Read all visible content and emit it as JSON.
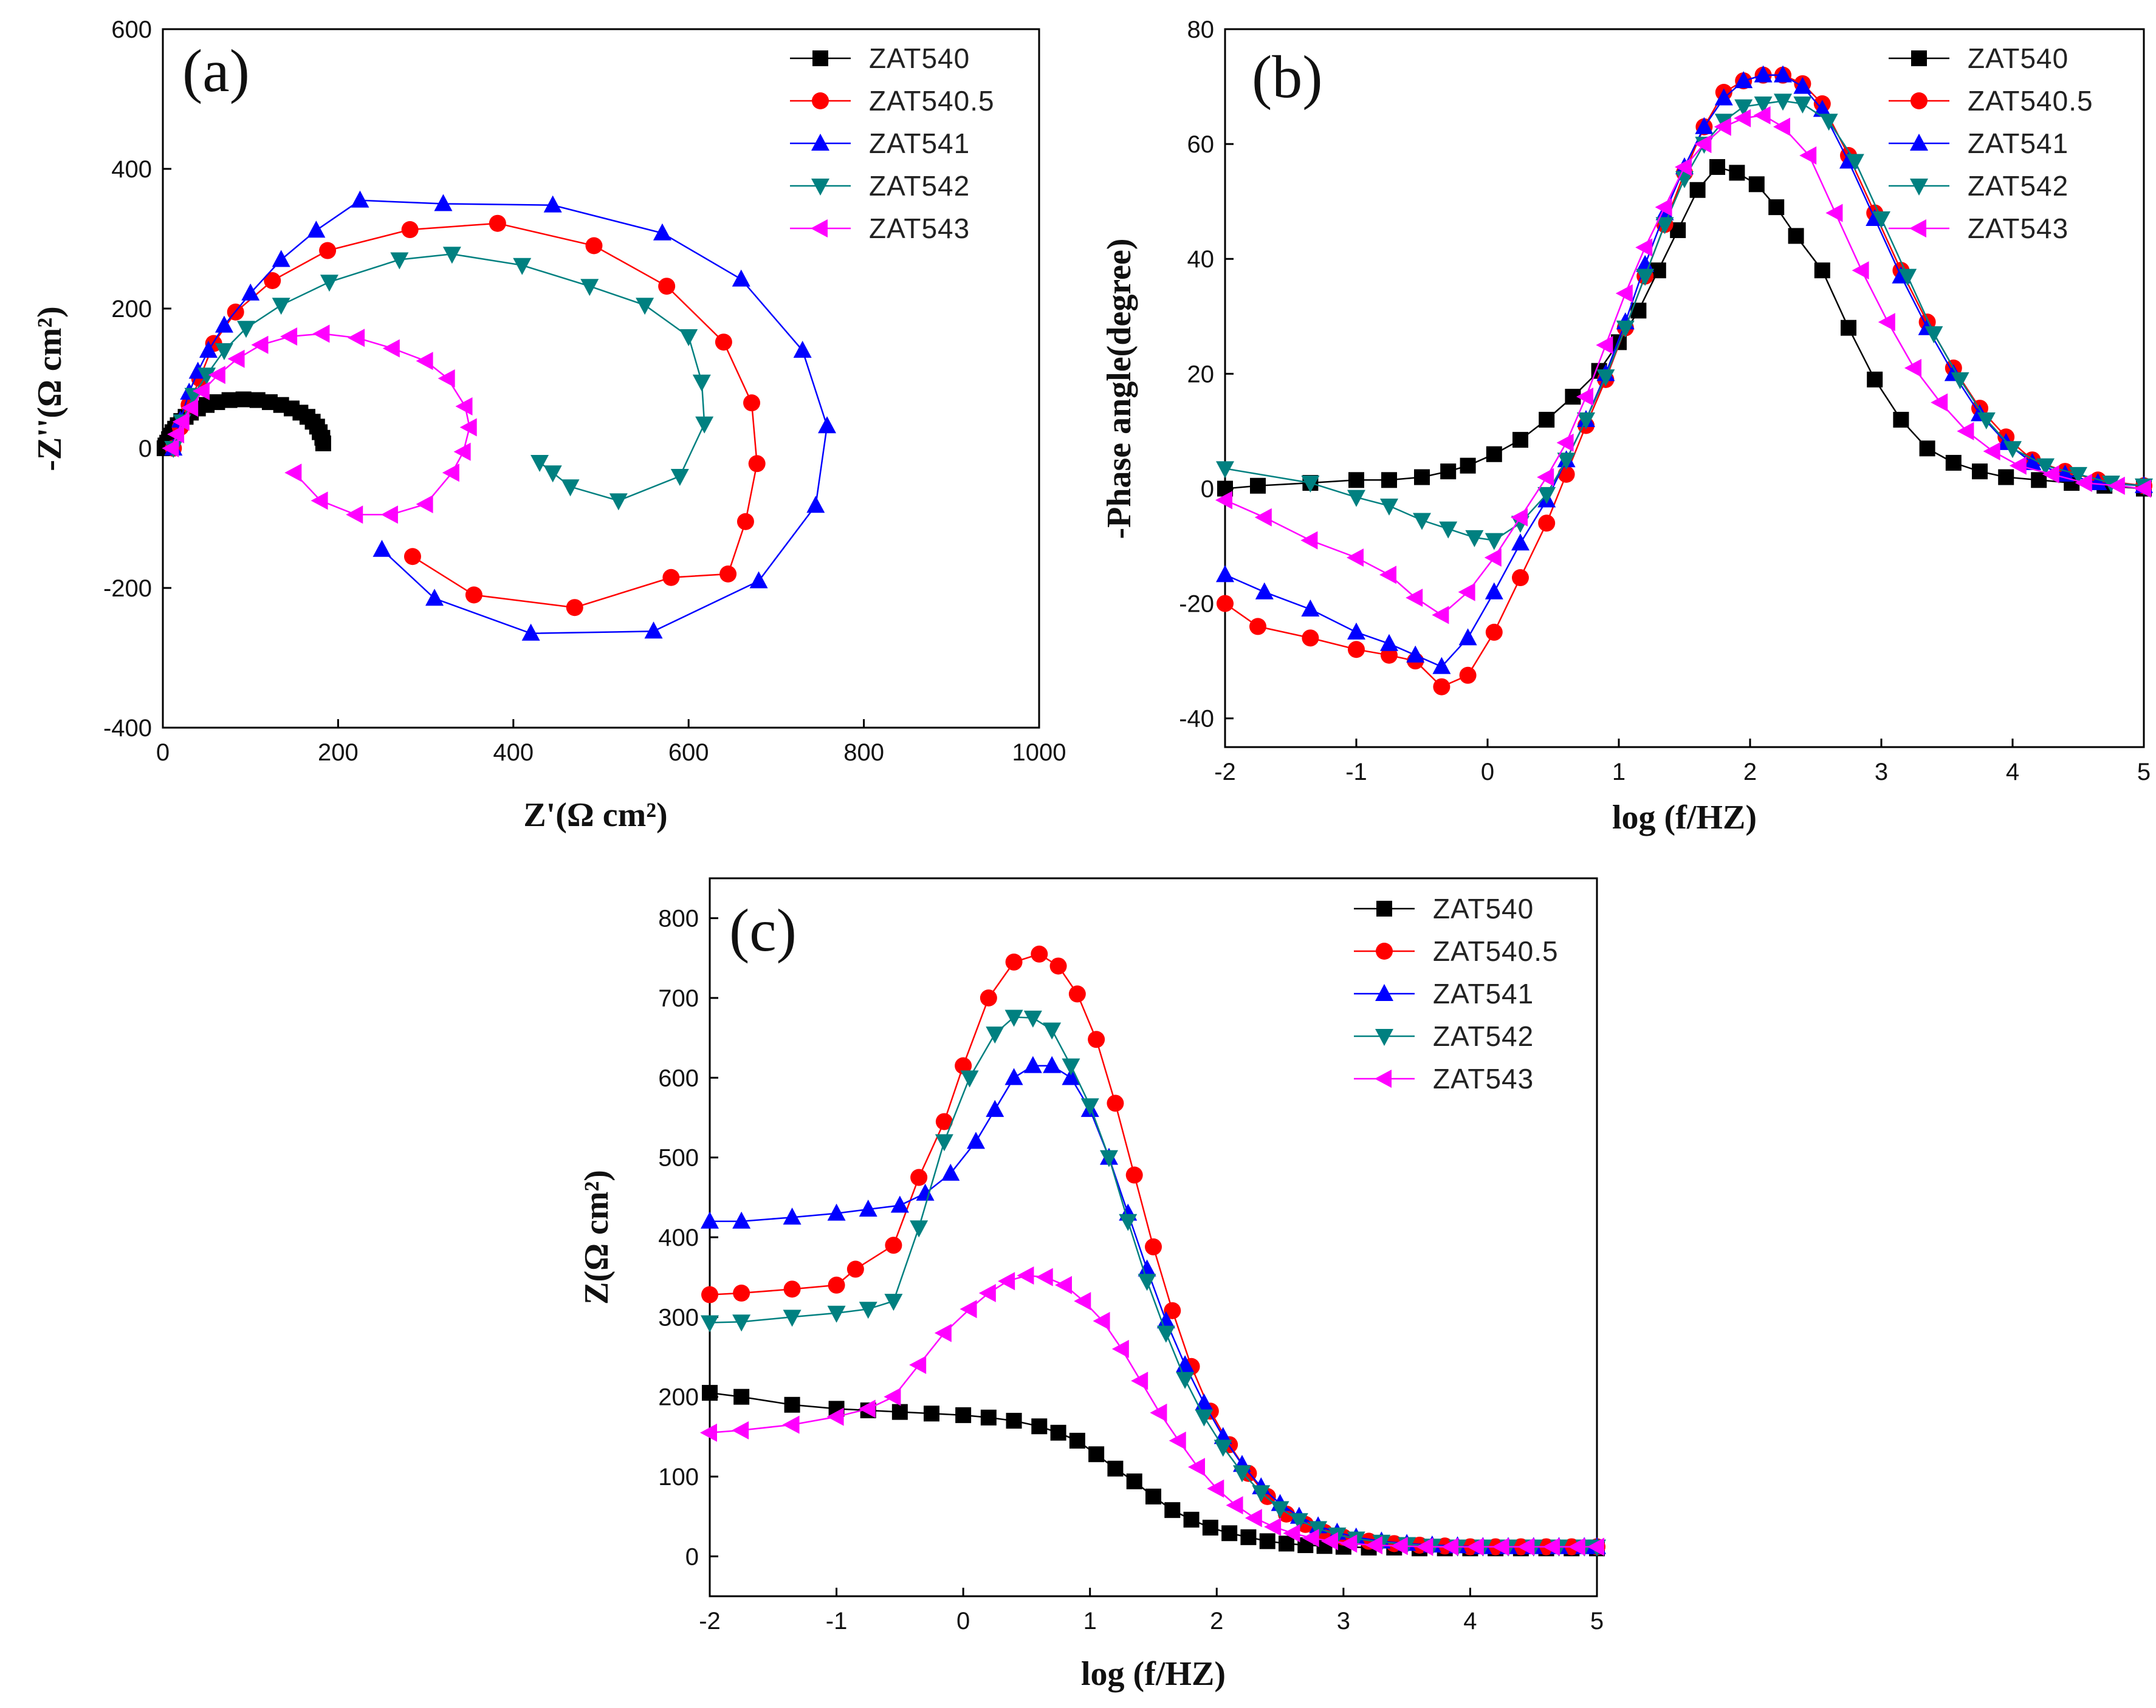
{
  "series_styles": [
    {
      "name": "ZAT540",
      "color": "#000000",
      "marker": "square"
    },
    {
      "name": "ZAT540.5",
      "color": "#ff0000",
      "marker": "circle"
    },
    {
      "name": "ZAT541",
      "color": "#0000ff",
      "marker": "triangle-up"
    },
    {
      "name": "ZAT542",
      "color": "#008080",
      "marker": "triangle-down"
    },
    {
      "name": "ZAT543",
      "color": "#ff00ff",
      "marker": "triangle-left"
    }
  ],
  "chart_data": [
    {
      "panel": "(a)",
      "type": "scatter",
      "xlabel": "Z'(Ω  cm²)",
      "ylabel": "-Z''(Ω cm²)",
      "xlim": [
        0,
        1000
      ],
      "ylim": [
        -400,
        600
      ],
      "xticks": [
        0,
        200,
        400,
        600,
        800,
        1000
      ],
      "yticks": [
        -400,
        -200,
        0,
        200,
        400,
        600
      ],
      "legend": "top-right",
      "series": [
        {
          "name": "ZAT540",
          "x": [
            2,
            3,
            5,
            7,
            9,
            11,
            14,
            17,
            21,
            26,
            32,
            40,
            50,
            62,
            76,
            92,
            108,
            122,
            135,
            147,
            157,
            165,
            171,
            176,
            179,
            182,
            183
          ],
          "y": [
            0,
            4,
            8,
            13,
            18,
            23,
            28,
            33,
            39,
            45,
            51,
            57,
            62,
            66,
            69,
            70,
            69,
            66,
            62,
            57,
            51,
            45,
            38,
            31,
            23,
            15,
            7
          ]
        },
        {
          "name": "ZAT540.5",
          "x": [
            12,
            20,
            30,
            42,
            58,
            83,
            125,
            188,
            282,
            382,
            492,
            575,
            640,
            672,
            678,
            665,
            645,
            580,
            470,
            355,
            285
          ],
          "y": [
            0,
            30,
            62,
            100,
            150,
            195,
            240,
            283,
            313,
            322,
            290,
            232,
            152,
            65,
            -22,
            -105,
            -180,
            -185,
            -228,
            -210,
            -155
          ]
        },
        {
          "name": "ZAT541",
          "x": [
            12,
            20,
            30,
            40,
            52,
            70,
            100,
            135,
            175,
            225,
            320,
            445,
            570,
            660,
            730,
            758,
            745,
            680,
            560,
            420,
            310,
            250
          ],
          "y": [
            0,
            40,
            80,
            110,
            140,
            176,
            222,
            270,
            312,
            355,
            350,
            348,
            308,
            242,
            140,
            32,
            -82,
            -190,
            -262,
            -265,
            -215,
            -145
          ]
        },
        {
          "name": "ZAT542",
          "x": [
            12,
            22,
            35,
            50,
            70,
            95,
            135,
            190,
            270,
            330,
            410,
            487,
            550,
            600,
            615,
            618,
            590,
            520,
            465,
            445,
            430
          ],
          "y": [
            0,
            38,
            76,
            105,
            140,
            172,
            205,
            238,
            270,
            278,
            262,
            232,
            205,
            160,
            95,
            35,
            -40,
            -75,
            -55,
            -35,
            -20
          ]
        },
        {
          "name": "ZAT543",
          "x": [
            10,
            16,
            22,
            32,
            45,
            63,
            85,
            112,
            145,
            182,
            222,
            262,
            300,
            325,
            345,
            350,
            343,
            330,
            300,
            260,
            220,
            180,
            150
          ],
          "y": [
            0,
            20,
            38,
            58,
            82,
            105,
            128,
            148,
            160,
            164,
            158,
            143,
            125,
            100,
            60,
            30,
            -5,
            -35,
            -80,
            -95,
            -95,
            -75,
            -35
          ]
        }
      ]
    },
    {
      "panel": "(b)",
      "type": "scatter",
      "xlabel": "log (f/HZ)",
      "ylabel": "-Phase angle(degree)",
      "xlim": [
        -2,
        5
      ],
      "ylim": [
        -45,
        80
      ],
      "xticks": [
        -2,
        -1,
        0,
        1,
        2,
        3,
        4,
        5
      ],
      "yticks": [
        -40,
        -20,
        0,
        20,
        40,
        60,
        80
      ],
      "legend": "top-right",
      "series": [
        {
          "name": "ZAT540",
          "x": [
            -2,
            -1.75,
            -1.35,
            -1,
            -0.75,
            -0.5,
            -0.3,
            -0.15,
            0.05,
            0.25,
            0.45,
            0.65,
            0.85,
            1,
            1.15,
            1.3,
            1.45,
            1.6,
            1.75,
            1.9,
            2.05,
            2.2,
            2.35,
            2.55,
            2.75,
            2.95,
            3.15,
            3.35,
            3.55,
            3.75,
            3.95,
            4.2,
            4.45,
            4.7,
            5
          ],
          "y": [
            0,
            0.5,
            1,
            1.5,
            1.5,
            2,
            3,
            4,
            6,
            8.5,
            12,
            16,
            20.5,
            25.5,
            31,
            38,
            45,
            52,
            56,
            55,
            53,
            49,
            44,
            38,
            28,
            19,
            12,
            7,
            4.5,
            3,
            2,
            1.5,
            1,
            0.5,
            0
          ]
        },
        {
          "name": "ZAT540.5",
          "x": [
            -2,
            -1.75,
            -1.35,
            -1,
            -0.75,
            -0.55,
            -0.35,
            -0.15,
            0.05,
            0.25,
            0.45,
            0.6,
            0.75,
            0.9,
            1.05,
            1.2,
            1.35,
            1.5,
            1.65,
            1.8,
            1.95,
            2.1,
            2.25,
            2.4,
            2.55,
            2.75,
            2.95,
            3.15,
            3.35,
            3.55,
            3.75,
            3.95,
            4.15,
            4.4,
            4.65,
            5
          ],
          "y": [
            -20,
            -24,
            -26,
            -28,
            -29,
            -30,
            -34.5,
            -32.5,
            -25,
            -15.5,
            -6,
            2.5,
            11,
            19,
            28,
            37,
            46,
            55,
            63,
            69,
            71,
            72,
            72,
            70.5,
            67,
            58,
            48,
            38,
            29,
            21,
            14,
            9,
            5,
            3,
            1.5,
            0.5
          ]
        },
        {
          "name": "ZAT541",
          "x": [
            -2,
            -1.7,
            -1.35,
            -1,
            -0.75,
            -0.55,
            -0.35,
            -0.15,
            0.05,
            0.25,
            0.45,
            0.6,
            0.75,
            0.9,
            1.05,
            1.2,
            1.35,
            1.5,
            1.65,
            1.8,
            1.95,
            2.1,
            2.25,
            2.4,
            2.55,
            2.75,
            2.95,
            3.15,
            3.35,
            3.55,
            3.75,
            3.95,
            4.15,
            4.4,
            4.65,
            5
          ],
          "y": [
            -15,
            -18,
            -21,
            -25,
            -27,
            -29,
            -31,
            -26,
            -18,
            -9.5,
            -2,
            5,
            12,
            20,
            29,
            39,
            48,
            56,
            63,
            68,
            71,
            72,
            72,
            70,
            66,
            57,
            47,
            37,
            28,
            20,
            13,
            8,
            4.5,
            2.5,
            1,
            0.5
          ]
        },
        {
          "name": "ZAT542",
          "x": [
            -2,
            -1.35,
            -1,
            -0.75,
            -0.5,
            -0.3,
            -0.1,
            0.05,
            0.25,
            0.45,
            0.6,
            0.75,
            0.9,
            1.05,
            1.2,
            1.35,
            1.5,
            1.65,
            1.8,
            1.95,
            2.1,
            2.25,
            2.4,
            2.6,
            2.8,
            3,
            3.2,
            3.4,
            3.6,
            3.8,
            4,
            4.25,
            4.5,
            4.75,
            5
          ],
          "y": [
            3.5,
            1,
            -1.5,
            -3,
            -5.5,
            -7,
            -8.5,
            -9,
            -6,
            -1,
            5,
            12,
            19.5,
            28,
            37,
            46,
            54,
            60,
            64,
            66.5,
            67,
            67.5,
            67,
            64,
            57,
            47,
            37,
            27,
            19,
            12,
            7,
            4,
            2.5,
            1,
            0.5
          ]
        },
        {
          "name": "ZAT543",
          "x": [
            -2,
            -1.7,
            -1.35,
            -1,
            -0.75,
            -0.55,
            -0.35,
            -0.15,
            0.05,
            0.25,
            0.45,
            0.6,
            0.75,
            0.9,
            1.05,
            1.2,
            1.35,
            1.5,
            1.65,
            1.8,
            1.95,
            2.1,
            2.25,
            2.45,
            2.65,
            2.85,
            3.05,
            3.25,
            3.45,
            3.65,
            3.85,
            4.05,
            4.3,
            4.55,
            4.8,
            5
          ],
          "y": [
            -2,
            -5,
            -9,
            -12,
            -15,
            -19,
            -22,
            -18,
            -12,
            -5,
            2,
            8,
            16,
            25,
            34,
            42,
            49,
            56,
            60,
            63,
            64.5,
            65,
            63,
            58,
            48,
            38,
            29,
            21,
            15,
            10,
            6.5,
            4,
            2.5,
            1,
            0.5,
            0
          ]
        }
      ]
    },
    {
      "panel": "(c)",
      "type": "scatter",
      "xlabel": "log (f/HZ)",
      "ylabel": "Z(Ω  cm²)",
      "xlim": [
        -2,
        5
      ],
      "ylim": [
        -50,
        850
      ],
      "xticks": [
        -2,
        -1,
        0,
        1,
        2,
        3,
        4,
        5
      ],
      "yticks": [
        0,
        100,
        200,
        300,
        400,
        500,
        600,
        700,
        800
      ],
      "legend": "top-right",
      "series": [
        {
          "name": "ZAT540",
          "x": [
            -2,
            -1.75,
            -1.35,
            -1,
            -0.75,
            -0.5,
            -0.25,
            0,
            0.2,
            0.4,
            0.6,
            0.75,
            0.9,
            1.05,
            1.2,
            1.35,
            1.5,
            1.65,
            1.8,
            1.95,
            2.1,
            2.25,
            2.4,
            2.55,
            2.7,
            2.85,
            3,
            3.2,
            3.4,
            3.6,
            3.8,
            4,
            4.2,
            4.4,
            4.6,
            4.8,
            5
          ],
          "y": [
            205,
            200,
            190,
            185,
            183,
            181,
            179,
            177,
            174,
            170,
            163,
            155,
            145,
            128,
            110,
            94,
            75,
            58,
            46,
            36,
            29,
            24,
            19,
            16,
            14,
            13,
            12,
            11,
            11,
            10,
            10,
            10,
            10,
            10,
            10,
            10,
            10
          ]
        },
        {
          "name": "ZAT540.5",
          "x": [
            -2,
            -1.75,
            -1.35,
            -1,
            -0.85,
            -0.55,
            -0.35,
            -0.15,
            0,
            0.2,
            0.4,
            0.6,
            0.75,
            0.9,
            1.05,
            1.2,
            1.35,
            1.5,
            1.65,
            1.8,
            1.95,
            2.1,
            2.25,
            2.4,
            2.55,
            2.7,
            2.85,
            3,
            3.2,
            3.4,
            3.6,
            3.8,
            4,
            4.2,
            4.4,
            4.6,
            4.8,
            5
          ],
          "y": [
            328,
            330,
            335,
            340,
            360,
            390,
            475,
            545,
            615,
            700,
            745,
            755,
            740,
            705,
            648,
            568,
            478,
            388,
            308,
            238,
            182,
            140,
            104,
            75,
            53,
            40,
            30,
            24,
            19,
            16,
            14,
            13,
            12,
            12,
            12,
            12,
            12,
            12
          ]
        },
        {
          "name": "ZAT541",
          "x": [
            -2,
            -1.75,
            -1.35,
            -1,
            -0.75,
            -0.5,
            -0.3,
            -0.1,
            0.1,
            0.25,
            0.4,
            0.55,
            0.7,
            0.85,
            1,
            1.15,
            1.3,
            1.45,
            1.6,
            1.75,
            1.9,
            2.05,
            2.2,
            2.35,
            2.5,
            2.65,
            2.8,
            2.95,
            3.1,
            3.3,
            3.5,
            3.7,
            3.9,
            4.1,
            4.3,
            4.5,
            4.7,
            4.9,
            5
          ],
          "y": [
            420,
            420,
            425,
            430,
            435,
            440,
            455,
            480,
            520,
            560,
            600,
            615,
            615,
            600,
            560,
            500,
            430,
            360,
            295,
            240,
            192,
            150,
            115,
            87,
            66,
            50,
            38,
            30,
            24,
            19,
            16,
            14,
            13,
            12,
            12,
            12,
            12,
            12,
            12
          ]
        },
        {
          "name": "ZAT542",
          "x": [
            -2,
            -1.75,
            -1.35,
            -1,
            -0.75,
            -0.55,
            -0.35,
            -0.15,
            0.05,
            0.25,
            0.4,
            0.55,
            0.7,
            0.85,
            1,
            1.15,
            1.3,
            1.45,
            1.6,
            1.75,
            1.9,
            2.05,
            2.2,
            2.35,
            2.5,
            2.65,
            2.8,
            2.95,
            3.1,
            3.3,
            3.5,
            3.7,
            3.9,
            4.1,
            4.3,
            4.5,
            4.7,
            4.9,
            5
          ],
          "y": [
            293,
            294,
            300,
            305,
            310,
            320,
            412,
            520,
            600,
            655,
            676,
            675,
            660,
            615,
            565,
            500,
            420,
            345,
            280,
            222,
            175,
            137,
            105,
            80,
            60,
            45,
            35,
            27,
            22,
            18,
            15,
            13,
            12,
            12,
            12,
            12,
            12,
            12,
            12
          ]
        },
        {
          "name": "ZAT543",
          "x": [
            -2,
            -1.75,
            -1.35,
            -1,
            -0.75,
            -0.55,
            -0.35,
            -0.15,
            0.05,
            0.2,
            0.35,
            0.5,
            0.65,
            0.8,
            0.95,
            1.1,
            1.25,
            1.4,
            1.55,
            1.7,
            1.85,
            2,
            2.15,
            2.3,
            2.45,
            2.6,
            2.75,
            2.9,
            3.05,
            3.25,
            3.45,
            3.65,
            3.85,
            4.05,
            4.25,
            4.45,
            4.65,
            4.85,
            5
          ],
          "y": [
            155,
            158,
            165,
            175,
            185,
            200,
            240,
            280,
            310,
            330,
            345,
            352,
            350,
            340,
            320,
            295,
            260,
            220,
            180,
            145,
            112,
            85,
            64,
            48,
            37,
            29,
            23,
            19,
            16,
            14,
            13,
            12,
            12,
            12,
            12,
            12,
            12,
            12,
            12
          ]
        }
      ]
    }
  ]
}
